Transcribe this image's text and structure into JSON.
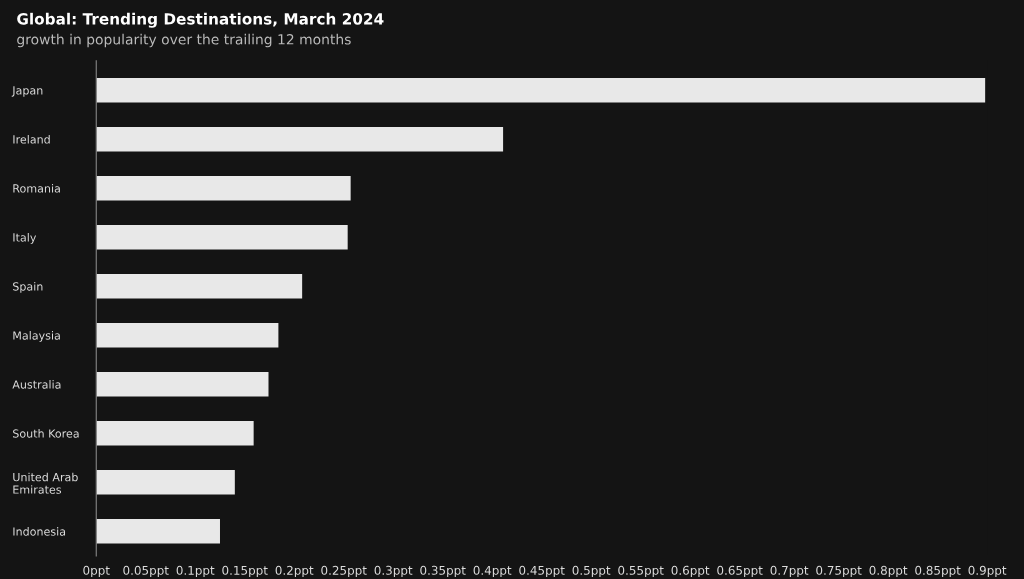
{
  "chart_data": {
    "type": "bar",
    "orientation": "horizontal",
    "title": "Global: Trending Destinations, March 2024",
    "subtitle": "growth in popularity over the trailing 12 months",
    "categories": [
      "Japan",
      "Ireland",
      "Romania",
      "Italy",
      "Spain",
      "Malaysia",
      "Australia",
      "South Korea",
      "United Arab\nEmirates",
      "Indonesia"
    ],
    "values": [
      0.898,
      0.411,
      0.257,
      0.254,
      0.208,
      0.184,
      0.174,
      0.159,
      0.14,
      0.125
    ],
    "color": "#e8e8e8",
    "xlim": [
      0,
      0.9
    ],
    "xticks": [
      {
        "value": 0,
        "label": "0ppt"
      },
      {
        "value": 0.05,
        "label": "0.05ppt"
      },
      {
        "value": 0.1,
        "label": "0.1ppt"
      },
      {
        "value": 0.15,
        "label": "0.15ppt"
      },
      {
        "value": 0.2,
        "label": "0.2ppt"
      },
      {
        "value": 0.25,
        "label": "0.25ppt"
      },
      {
        "value": 0.3,
        "label": "0.3ppt"
      },
      {
        "value": 0.35,
        "label": "0.35ppt"
      },
      {
        "value": 0.4,
        "label": "0.4ppt"
      },
      {
        "value": 0.45,
        "label": "0.45ppt"
      },
      {
        "value": 0.5,
        "label": "0.5ppt"
      },
      {
        "value": 0.55,
        "label": "0.55ppt"
      },
      {
        "value": 0.6,
        "label": "0.6ppt"
      },
      {
        "value": 0.65,
        "label": "0.65ppt"
      },
      {
        "value": 0.7,
        "label": "0.7ppt"
      },
      {
        "value": 0.75,
        "label": "0.75ppt"
      },
      {
        "value": 0.8,
        "label": "0.8ppt"
      },
      {
        "value": 0.85,
        "label": "0.85ppt"
      },
      {
        "value": 0.9,
        "label": "0.9ppt"
      }
    ],
    "grid": false,
    "legend": false
  }
}
